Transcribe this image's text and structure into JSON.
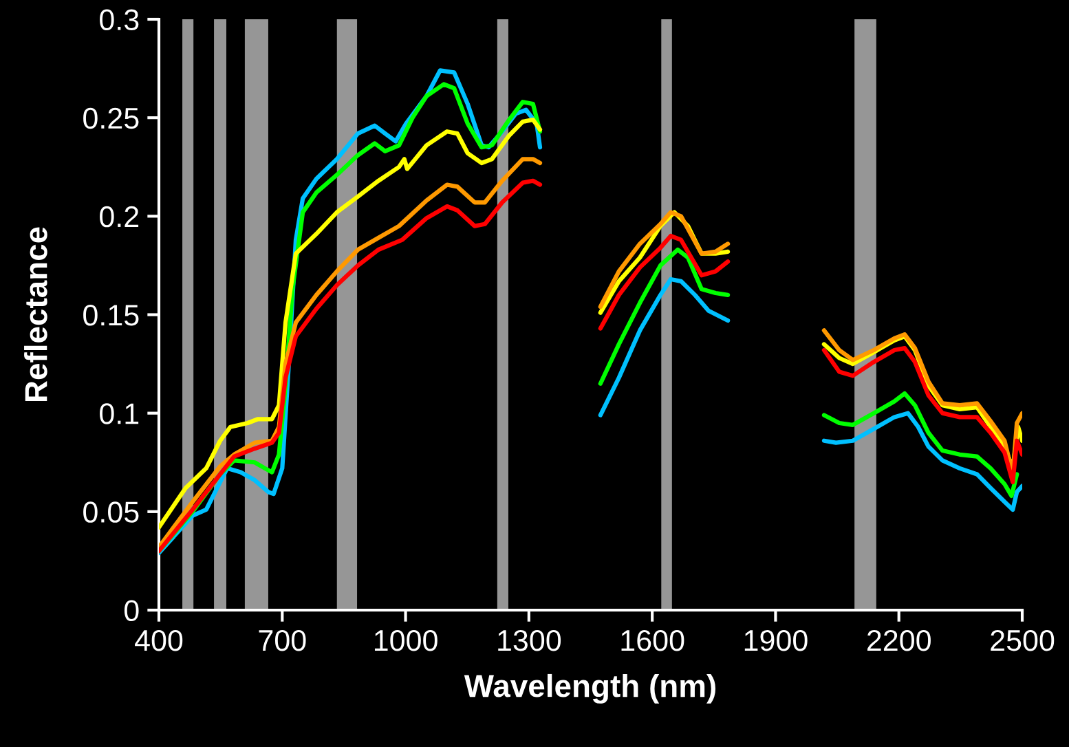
{
  "chart_data": {
    "type": "line",
    "xlabel": "Wavelength (nm)",
    "ylabel": "Reflectance",
    "xlim": [
      400,
      2500
    ],
    "xticks": [
      400,
      700,
      1000,
      1300,
      1600,
      1900,
      2200,
      2500
    ],
    "ylim": [
      0,
      0.3
    ],
    "yticks": [
      0,
      0.05,
      0.1,
      0.15,
      0.2,
      0.25,
      0.3
    ],
    "grid": false,
    "marker": "none",
    "line_style": "solid",
    "bands": [
      {
        "axis": "x",
        "from": 457,
        "to": 484,
        "color": "#969696"
      },
      {
        "axis": "x",
        "from": 534,
        "to": 564,
        "color": "#969696"
      },
      {
        "axis": "x",
        "from": 609,
        "to": 666,
        "color": "#969696"
      },
      {
        "axis": "x",
        "from": 833,
        "to": 882,
        "color": "#969696"
      },
      {
        "axis": "x",
        "from": 1223,
        "to": 1250,
        "color": "#969696"
      },
      {
        "axis": "x",
        "from": 1622,
        "to": 1648,
        "color": "#969696"
      },
      {
        "axis": "x",
        "from": 2092,
        "to": 2145,
        "color": "#969696"
      }
    ],
    "series": [
      {
        "color": "#00c0ff",
        "x": [
          400,
          482,
          515,
          549,
          566,
          599,
          633,
          666,
          679,
          700,
          716,
          733,
          750,
          783,
          833,
          884,
          925,
          950,
          976,
          1001,
          1051,
          1084,
          1118,
          1151,
          1185,
          1202,
          1235,
          1268,
          1293,
          1319,
          1327,
          1400,
          1474,
          1519,
          1570,
          1620,
          1645,
          1670,
          1704,
          1737,
          1784,
          1900,
          2018,
          2047,
          2088,
          2139,
          2189,
          2222,
          2247,
          2272,
          2306,
          2348,
          2390,
          2423,
          2457,
          2477,
          2487,
          2500
        ],
        "values": [
          0.029,
          0.048,
          0.051,
          0.065,
          0.072,
          0.07,
          0.066,
          0.06,
          0.059,
          0.072,
          0.125,
          0.188,
          0.209,
          0.219,
          0.229,
          0.242,
          0.246,
          0.242,
          0.238,
          0.247,
          0.261,
          0.274,
          0.273,
          0.257,
          0.236,
          0.235,
          0.243,
          0.252,
          0.254,
          0.247,
          0.235,
          null,
          0.099,
          0.118,
          0.142,
          0.16,
          0.168,
          0.167,
          0.16,
          0.152,
          0.147,
          null,
          0.086,
          0.085,
          0.086,
          0.092,
          0.098,
          0.1,
          0.093,
          0.083,
          0.076,
          0.072,
          0.069,
          0.062,
          0.055,
          0.051,
          0.06,
          0.063
        ]
      },
      {
        "color": "#00ff00",
        "x": [
          400,
          482,
          549,
          583,
          633,
          658,
          675,
          692,
          708,
          725,
          750,
          783,
          833,
          884,
          925,
          950,
          984,
          1017,
          1051,
          1093,
          1118,
          1151,
          1185,
          1210,
          1252,
          1285,
          1310,
          1327,
          1400,
          1474,
          1519,
          1570,
          1620,
          1662,
          1687,
          1720,
          1754,
          1784,
          1900,
          2018,
          2055,
          2088,
          2139,
          2189,
          2214,
          2239,
          2272,
          2306,
          2348,
          2390,
          2423,
          2457,
          2474,
          2487
        ],
        "values": [
          0.03,
          0.05,
          0.069,
          0.076,
          0.075,
          0.072,
          0.07,
          0.079,
          0.114,
          0.163,
          0.202,
          0.212,
          0.221,
          0.231,
          0.237,
          0.233,
          0.236,
          0.25,
          0.261,
          0.267,
          0.265,
          0.247,
          0.235,
          0.236,
          0.249,
          0.258,
          0.257,
          0.243,
          null,
          0.115,
          0.135,
          0.156,
          0.175,
          0.183,
          0.179,
          0.163,
          0.161,
          0.16,
          null,
          0.099,
          0.095,
          0.094,
          0.1,
          0.106,
          0.11,
          0.104,
          0.09,
          0.081,
          0.079,
          0.078,
          0.072,
          0.064,
          0.058,
          0.069
        ]
      },
      {
        "color": "#ffff00",
        "x": [
          400,
          465,
          515,
          549,
          574,
          616,
          641,
          675,
          692,
          708,
          733,
          783,
          833,
          884,
          934,
          984,
          997,
          1004,
          1051,
          1101,
          1126,
          1151,
          1185,
          1210,
          1252,
          1285,
          1310,
          1327,
          1400,
          1474,
          1519,
          1570,
          1620,
          1654,
          1687,
          1720,
          1754,
          1784,
          1900,
          2018,
          2055,
          2088,
          2139,
          2189,
          2214,
          2239,
          2272,
          2306,
          2348,
          2390,
          2423,
          2457,
          2477,
          2490,
          2500
        ],
        "values": [
          0.042,
          0.062,
          0.072,
          0.086,
          0.093,
          0.095,
          0.097,
          0.097,
          0.104,
          0.146,
          0.181,
          0.191,
          0.202,
          0.21,
          0.218,
          0.225,
          0.229,
          0.224,
          0.236,
          0.243,
          0.242,
          0.232,
          0.227,
          0.229,
          0.241,
          0.248,
          0.249,
          0.244,
          null,
          0.151,
          0.167,
          0.179,
          0.195,
          0.202,
          0.195,
          0.181,
          0.181,
          0.182,
          null,
          0.135,
          0.128,
          0.125,
          0.131,
          0.137,
          0.139,
          0.132,
          0.114,
          0.104,
          0.102,
          0.103,
          0.093,
          0.083,
          0.072,
          0.093,
          0.086
        ]
      },
      {
        "color": "#ff9900",
        "x": [
          400,
          482,
          549,
          583,
          633,
          675,
          692,
          708,
          733,
          783,
          833,
          884,
          934,
          984,
          1051,
          1101,
          1126,
          1168,
          1193,
          1235,
          1285,
          1310,
          1327,
          1400,
          1474,
          1519,
          1570,
          1620,
          1645,
          1670,
          1720,
          1754,
          1784,
          1900,
          2018,
          2055,
          2088,
          2139,
          2189,
          2214,
          2239,
          2272,
          2306,
          2348,
          2390,
          2423,
          2457,
          2477,
          2487,
          2500
        ],
        "values": [
          0.032,
          0.055,
          0.073,
          0.079,
          0.085,
          0.086,
          0.093,
          0.125,
          0.146,
          0.16,
          0.172,
          0.183,
          0.189,
          0.195,
          0.208,
          0.216,
          0.215,
          0.207,
          0.207,
          0.218,
          0.229,
          0.229,
          0.227,
          null,
          0.154,
          0.172,
          0.186,
          0.196,
          0.202,
          0.2,
          0.181,
          0.182,
          0.186,
          null,
          0.142,
          0.132,
          0.127,
          0.132,
          0.138,
          0.14,
          0.133,
          0.116,
          0.105,
          0.104,
          0.105,
          0.096,
          0.086,
          0.069,
          0.095,
          0.1
        ]
      },
      {
        "color": "#ff0000",
        "x": [
          400,
          482,
          549,
          583,
          633,
          675,
          692,
          708,
          733,
          783,
          833,
          884,
          934,
          992,
          1051,
          1101,
          1126,
          1168,
          1193,
          1235,
          1285,
          1310,
          1327,
          1400,
          1474,
          1519,
          1570,
          1620,
          1645,
          1670,
          1720,
          1754,
          1784,
          1900,
          2018,
          2055,
          2088,
          2139,
          2189,
          2214,
          2239,
          2272,
          2306,
          2348,
          2390,
          2423,
          2457,
          2477,
          2487,
          2500
        ],
        "values": [
          0.03,
          0.051,
          0.069,
          0.078,
          0.082,
          0.085,
          0.09,
          0.118,
          0.139,
          0.153,
          0.165,
          0.175,
          0.183,
          0.188,
          0.199,
          0.205,
          0.203,
          0.195,
          0.196,
          0.207,
          0.217,
          0.218,
          0.216,
          null,
          0.143,
          0.16,
          0.174,
          0.184,
          0.19,
          0.188,
          0.17,
          0.172,
          0.177,
          null,
          0.132,
          0.121,
          0.119,
          0.126,
          0.132,
          0.133,
          0.126,
          0.109,
          0.1,
          0.098,
          0.098,
          0.09,
          0.08,
          0.065,
          0.086,
          0.079
        ]
      }
    ]
  }
}
